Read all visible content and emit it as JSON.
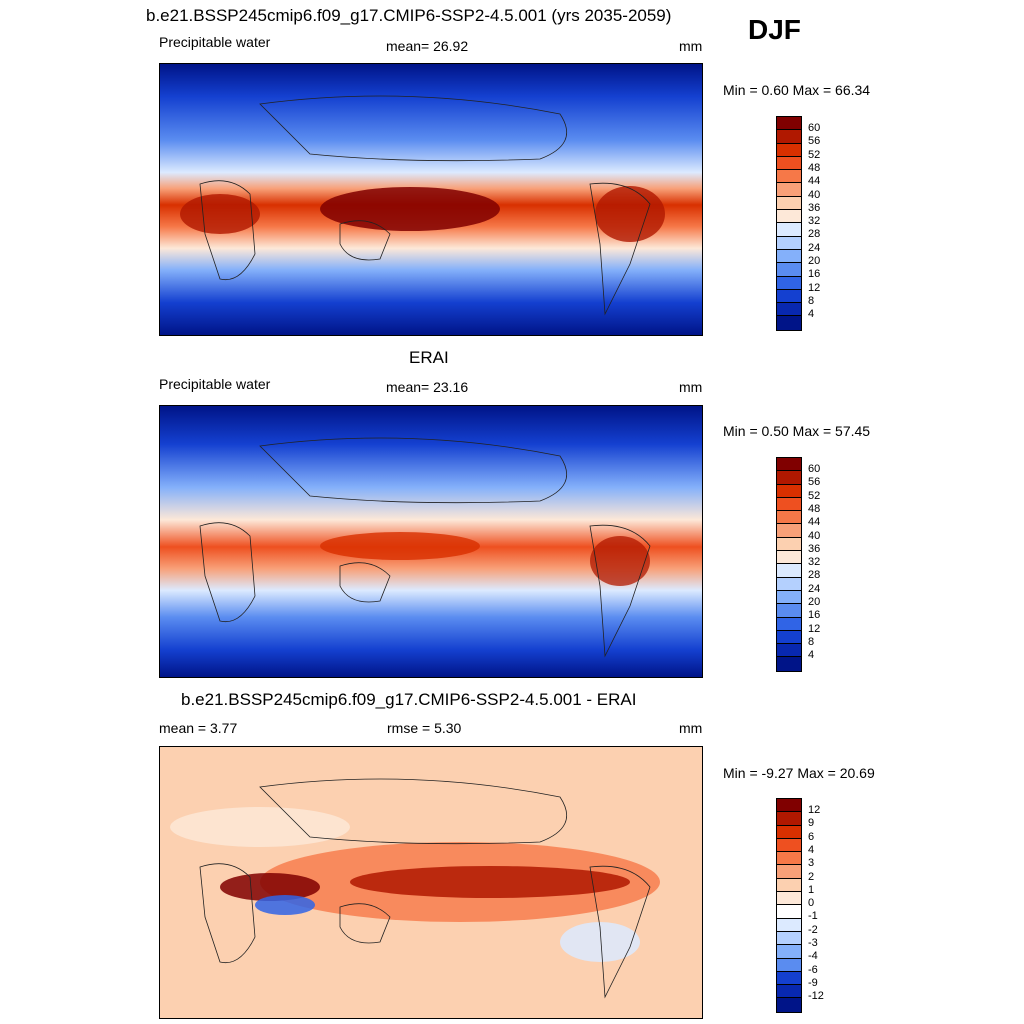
{
  "season": "DJF",
  "panels": [
    {
      "title": "b.e21.BSSP245cmip6.f09_g17.CMIP6-SSP2-4.5.001 (yrs 2035-2059)",
      "left_label": "Precipitable water",
      "center_label": "mean=  26.92",
      "units": "mm",
      "minmax": "Min =   0.60 Max =  66.34",
      "levels": [
        "60",
        "56",
        "52",
        "48",
        "44",
        "40",
        "36",
        "32",
        "28",
        "24",
        "20",
        "16",
        "12",
        "8",
        "4"
      ],
      "colors": [
        "#800000",
        "#b01800",
        "#d83000",
        "#ee5020",
        "#f67848",
        "#f8a078",
        "#fcd0b0",
        "#fde8d8",
        "#dceaff",
        "#b4d0fe",
        "#84b0fa",
        "#5a8cf0",
        "#3064e6",
        "#1440d0",
        "#0828b0",
        "#001488"
      ]
    },
    {
      "title": "ERAI",
      "left_label": "Precipitable water",
      "center_label": "mean=  23.16",
      "units": "mm",
      "minmax": "Min =   0.50 Max =  57.45",
      "levels": [
        "60",
        "56",
        "52",
        "48",
        "44",
        "40",
        "36",
        "32",
        "28",
        "24",
        "20",
        "16",
        "12",
        "8",
        "4"
      ],
      "colors": [
        "#800000",
        "#b01800",
        "#d83000",
        "#ee5020",
        "#f67848",
        "#f8a078",
        "#fcd0b0",
        "#fde8d8",
        "#dceaff",
        "#b4d0fe",
        "#84b0fa",
        "#5a8cf0",
        "#3064e6",
        "#1440d0",
        "#0828b0",
        "#001488"
      ]
    },
    {
      "title": "b.e21.BSSP245cmip6.f09_g17.CMIP6-SSP2-4.5.001 - ERAI",
      "left_label": "mean =   3.77",
      "center_label": "rmse =   5.30",
      "units": "mm",
      "minmax": "Min =  -9.27 Max =  20.69",
      "levels": [
        "12",
        "9",
        "6",
        "4",
        "3",
        "2",
        "1",
        "0",
        "-1",
        "-2",
        "-3",
        "-4",
        "-6",
        "-9",
        "-12"
      ],
      "colors": [
        "#800000",
        "#b01800",
        "#d83000",
        "#ee5020",
        "#f67848",
        "#f8a078",
        "#fcd0b0",
        "#fde8d8",
        "#ffffff",
        "#dceaff",
        "#b4d0fe",
        "#84b0fa",
        "#5a8cf0",
        "#1440d0",
        "#0828b0",
        "#001488"
      ]
    }
  ]
}
